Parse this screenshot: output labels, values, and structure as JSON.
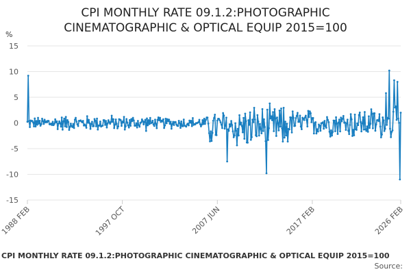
{
  "title_line1": "CPI MONTHLY RATE 09.1.2:PHOTOGRAPHIC",
  "title_line2": "CINEMATOGRAPHIC & OPTICAL EQUIP 2015=100",
  "footer_title": "CPI MONTHLY RATE 09.1.2:PHOTOGRAPHIC CINEMATOGRAPHIC & OPTICAL EQUIP 2015=100",
  "source_label": "Source:",
  "colors": {
    "line": "#1a7fc1",
    "grid": "#e6e6e6",
    "axis": "#cccccc"
  },
  "chart_data": {
    "type": "line",
    "ylabel": "%",
    "ylim": [
      -15,
      15
    ],
    "yticks": [
      15,
      10,
      5,
      0,
      -5,
      -10,
      -15
    ],
    "xticks": [
      {
        "label": "1988 FEB",
        "index": 0
      },
      {
        "label": "1997 OCT",
        "index": 116
      },
      {
        "label": "2007 JUN",
        "index": 232
      },
      {
        "label": "2017 FEB",
        "index": 348
      },
      {
        "label": "2026 FEB",
        "index": 456
      }
    ],
    "grid": true,
    "legend": "none",
    "series_start": "1988 FEB",
    "series_end": "2026 FEB",
    "key_points": [
      {
        "date": "1988 MAR",
        "value": 9.2
      },
      {
        "date": "2008 JUN",
        "value": -7.5
      },
      {
        "date": "2012 JUN",
        "value": -9.8
      },
      {
        "date": "2024 DEC",
        "value": 10.2
      },
      {
        "date": "2026 JAN",
        "value": -11.0
      },
      {
        "date": "2026 FEB",
        "value": 2.0
      }
    ]
  }
}
